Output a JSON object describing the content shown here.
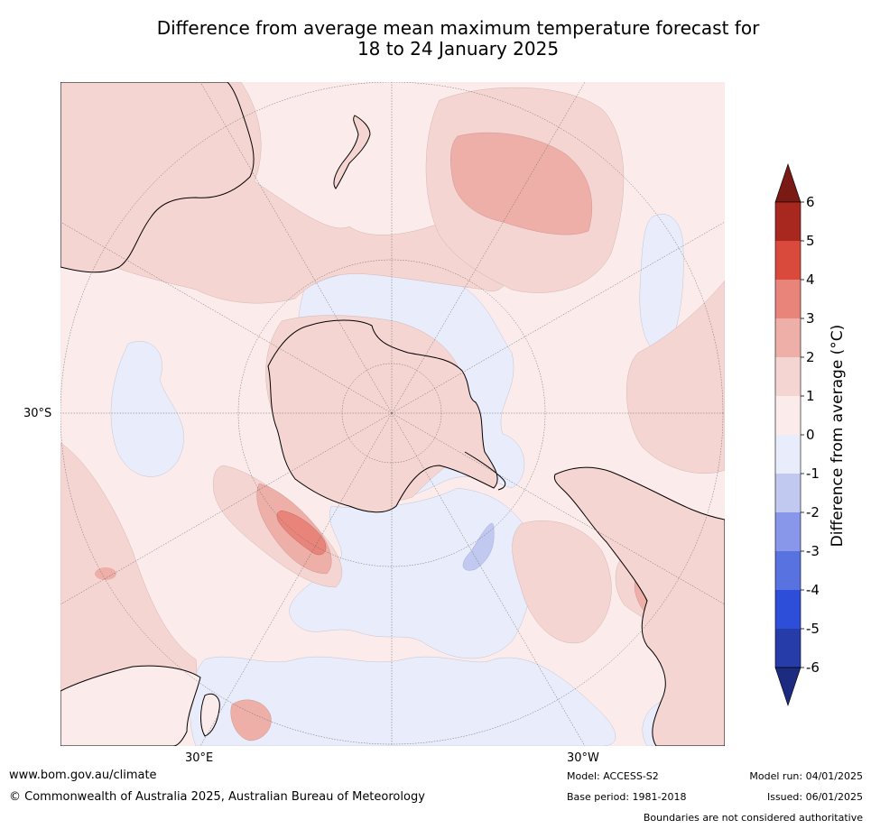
{
  "title_line1": "Difference from average mean maximum temperature forecast for",
  "title_line2": "18 to 24 January 2025",
  "lat_label": "30°S",
  "lon_label_left": "30°E",
  "lon_label_right": "30°W",
  "colorbar": {
    "label": "Difference from average (°C)",
    "ticks": [
      "6",
      "5",
      "4",
      "3",
      "2",
      "1",
      "0",
      "-1",
      "-2",
      "-3",
      "-4",
      "-5",
      "-6"
    ],
    "colors_top_to_bottom": [
      "#a8281f",
      "#d94a3c",
      "#e8847a",
      "#edafa8",
      "#f5d5d2",
      "#fbeceb",
      "#e8ecfb",
      "#c1c9f1",
      "#8897ea",
      "#5872e0",
      "#2d4ed8",
      "#263da9"
    ],
    "over_color": "#7a1a14",
    "under_color": "#1c2a80"
  },
  "footer": {
    "website": "www.bom.gov.au/climate",
    "copyright": "© Commonwealth of Australia 2025, Australian Bureau of Meteorology",
    "model": "Model: ACCESS-S2",
    "base_period": "Base period: 1981-2018",
    "model_run": "Model run: 04/01/2025",
    "issued": "Issued: 06/01/2025",
    "disclaimer": "Boundaries are not considered authoritative"
  }
}
